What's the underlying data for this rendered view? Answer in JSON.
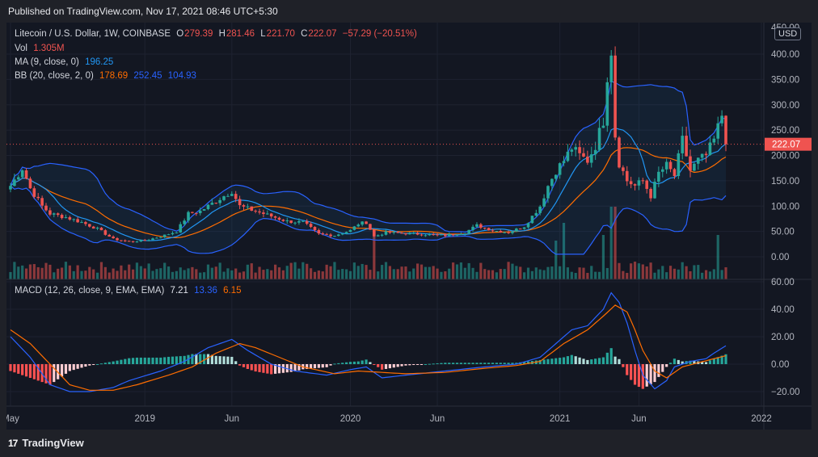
{
  "published": "Published on TradingView.com, Nov 17, 2021 08:46 UTC+5:30",
  "brand": "TradingView",
  "brand_logo": "17",
  "legend": {
    "symbol": "Litecoin / U.S. Dollar, 1W, COINBASE",
    "o_label": "O",
    "o": "279.39",
    "h_label": "H",
    "h": "281.46",
    "l_label": "L",
    "l": "221.70",
    "c_label": "C",
    "c": "222.07",
    "change": "−57.29 (−20.51%)",
    "vol_label": "Vol",
    "vol": "1.305M",
    "ma_label": "MA (9, close, 0)",
    "ma": "196.25",
    "bb_label": "BB (20, close, 2, 0)",
    "bb_basis": "178.69",
    "bb_upper": "252.45",
    "bb_lower": "104.93",
    "macd_label": "MACD (12, 26, close, 9, EMA, EMA)",
    "macd_hist": "7.21",
    "macd_line": "13.36",
    "macd_signal": "6.15"
  },
  "currency_button": "USD",
  "last_price_tag": "222.07",
  "colors": {
    "up": "#26a69a",
    "down": "#ef5350",
    "ma": "#2196f3",
    "bb_basis": "#ff6d00",
    "bb_band": "#2962ff",
    "macd": "#2962ff",
    "signal": "#ff6d00",
    "hist_up_strong": "#26a69a",
    "hist_up_weak": "#b2dfdb",
    "hist_down_strong": "#ff5252",
    "hist_down_weak": "#ffcdd2"
  },
  "chart_data": [
    {
      "type": "candlestick",
      "title": "Litecoin / U.S. Dollar, 1W, COINBASE",
      "ylim": [
        -40,
        425
      ],
      "y_ticks": [
        "400.00",
        "350.00",
        "300.00",
        "250.00",
        "200.00",
        "150.00",
        "100.00",
        "50.00",
        "0.00"
      ],
      "y_tick_values": [
        400,
        350,
        300,
        250,
        200,
        150,
        100,
        50,
        0
      ],
      "top_tick_partial": "450.00",
      "x_ticks": [
        "May",
        "2019",
        "Jun",
        "2020",
        "Jun",
        "2021",
        "Jun",
        "2022"
      ],
      "x_tick_weeks": [
        0,
        34,
        56,
        86,
        108,
        139,
        159,
        190
      ],
      "grid": true,
      "price_path_weekly_close_approx": [
        [
          0,
          140
        ],
        [
          3,
          175
        ],
        [
          5,
          135
        ],
        [
          8,
          100
        ],
        [
          10,
          85
        ],
        [
          14,
          78
        ],
        [
          18,
          68
        ],
        [
          22,
          55
        ],
        [
          26,
          35
        ],
        [
          30,
          30
        ],
        [
          34,
          32
        ],
        [
          38,
          40
        ],
        [
          42,
          50
        ],
        [
          45,
          85
        ],
        [
          48,
          90
        ],
        [
          52,
          110
        ],
        [
          56,
          130
        ],
        [
          58,
          100
        ],
        [
          62,
          90
        ],
        [
          66,
          80
        ],
        [
          70,
          70
        ],
        [
          74,
          68
        ],
        [
          78,
          45
        ],
        [
          82,
          42
        ],
        [
          86,
          52
        ],
        [
          88,
          65
        ],
        [
          90,
          68
        ],
        [
          92,
          40
        ],
        [
          95,
          48
        ],
        [
          100,
          46
        ],
        [
          105,
          44
        ],
        [
          110,
          42
        ],
        [
          115,
          48
        ],
        [
          118,
          62
        ],
        [
          122,
          52
        ],
        [
          126,
          48
        ],
        [
          130,
          60
        ],
        [
          134,
          100
        ],
        [
          136,
          140
        ],
        [
          138,
          170
        ],
        [
          140,
          190
        ],
        [
          142,
          215
        ],
        [
          144,
          200
        ],
        [
          146,
          190
        ],
        [
          148,
          220
        ],
        [
          150,
          270
        ],
        [
          151,
          360
        ],
        [
          152,
          410
        ],
        [
          153,
          240
        ],
        [
          154,
          185
        ],
        [
          156,
          150
        ],
        [
          158,
          140
        ],
        [
          160,
          150
        ],
        [
          162,
          120
        ],
        [
          164,
          165
        ],
        [
          166,
          180
        ],
        [
          168,
          160
        ],
        [
          170,
          230
        ],
        [
          172,
          170
        ],
        [
          174,
          190
        ],
        [
          176,
          200
        ],
        [
          178,
          230
        ],
        [
          180,
          280
        ],
        [
          181,
          222.07
        ]
      ],
      "volume_bars_count": 182
    },
    {
      "type": "macd",
      "title": "MACD (12, 26, close, 9, EMA, EMA)",
      "ylim": [
        -28,
        64
      ],
      "y_ticks": [
        "60.00",
        "40.00",
        "20.00",
        "0.00",
        "−20.00"
      ],
      "y_tick_values": [
        60,
        40,
        20,
        0,
        -20
      ],
      "macd_line_approx": [
        [
          0,
          20
        ],
        [
          5,
          5
        ],
        [
          10,
          -15
        ],
        [
          15,
          -20
        ],
        [
          20,
          -20
        ],
        [
          26,
          -17
        ],
        [
          30,
          -12
        ],
        [
          38,
          -5
        ],
        [
          44,
          2
        ],
        [
          50,
          12
        ],
        [
          56,
          18
        ],
        [
          60,
          10
        ],
        [
          66,
          0
        ],
        [
          72,
          -5
        ],
        [
          80,
          -8
        ],
        [
          86,
          -4
        ],
        [
          90,
          -2
        ],
        [
          94,
          -10
        ],
        [
          100,
          -8
        ],
        [
          110,
          -5
        ],
        [
          120,
          -2
        ],
        [
          128,
          0
        ],
        [
          134,
          5
        ],
        [
          138,
          15
        ],
        [
          142,
          25
        ],
        [
          146,
          28
        ],
        [
          150,
          40
        ],
        [
          152,
          52
        ],
        [
          154,
          45
        ],
        [
          156,
          30
        ],
        [
          158,
          10
        ],
        [
          160,
          -8
        ],
        [
          163,
          -18
        ],
        [
          166,
          -12
        ],
        [
          168,
          -2
        ],
        [
          172,
          2
        ],
        [
          176,
          4
        ],
        [
          178,
          8
        ],
        [
          181,
          13.36
        ]
      ],
      "signal_line_approx": [
        [
          0,
          25
        ],
        [
          5,
          15
        ],
        [
          10,
          0
        ],
        [
          15,
          -15
        ],
        [
          20,
          -19
        ],
        [
          26,
          -19
        ],
        [
          32,
          -15
        ],
        [
          40,
          -8
        ],
        [
          46,
          -2
        ],
        [
          52,
          8
        ],
        [
          58,
          15
        ],
        [
          62,
          12
        ],
        [
          68,
          5
        ],
        [
          74,
          -2
        ],
        [
          82,
          -7
        ],
        [
          88,
          -5
        ],
        [
          94,
          -6
        ],
        [
          100,
          -7
        ],
        [
          110,
          -6
        ],
        [
          120,
          -3
        ],
        [
          128,
          -1
        ],
        [
          134,
          2
        ],
        [
          140,
          15
        ],
        [
          146,
          25
        ],
        [
          150,
          35
        ],
        [
          153,
          43
        ],
        [
          156,
          38
        ],
        [
          158,
          25
        ],
        [
          160,
          10
        ],
        [
          163,
          -5
        ],
        [
          166,
          -10
        ],
        [
          170,
          -2
        ],
        [
          174,
          1
        ],
        [
          178,
          4
        ],
        [
          181,
          6.15
        ]
      ]
    }
  ]
}
